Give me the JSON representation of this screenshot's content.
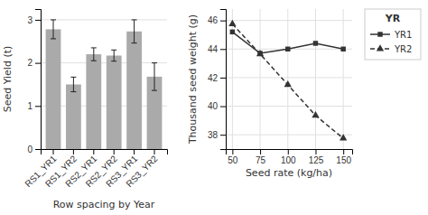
{
  "chart_data": [
    {
      "type": "bar",
      "categories": [
        "RS1_YR1",
        "RS1_YR2",
        "RS2_YR1",
        "RS2_YR2",
        "RS3_YR1",
        "RS3_YR2"
      ],
      "values": [
        2.78,
        1.5,
        2.2,
        2.17,
        2.73,
        1.68
      ],
      "errors": [
        0.22,
        0.17,
        0.15,
        0.13,
        0.27,
        0.32
      ],
      "color": "#aaaaaa",
      "xlabel": "Row spacing by Year",
      "ylabel": "Seed Yield (t)",
      "ylim": [
        0,
        3.25
      ],
      "yticks": [
        0,
        1,
        2,
        3
      ],
      "grid": true
    },
    {
      "type": "line",
      "x": [
        50,
        75,
        100,
        125,
        150
      ],
      "series": [
        {
          "name": "YR1",
          "color": "#333333",
          "marker": "square",
          "line_style": "solid",
          "values": [
            45.2,
            43.7,
            44.0,
            44.4,
            44.0
          ]
        },
        {
          "name": "YR2",
          "color": "#333333",
          "marker": "triangle",
          "line_style": "dashed",
          "values": [
            45.75,
            43.65,
            41.5,
            39.35,
            37.75
          ]
        }
      ],
      "xlabel": "Seed rate (kg/ha)",
      "ylabel": "Thousand seed weight (g)",
      "xlim": [
        44,
        158
      ],
      "xticks": [
        50,
        75,
        100,
        125,
        150
      ],
      "ylim": [
        37.0,
        46.8
      ],
      "yticks": [
        38,
        40,
        42,
        44,
        46
      ],
      "legend_title": "YR",
      "legend": "right",
      "grid": true
    }
  ]
}
